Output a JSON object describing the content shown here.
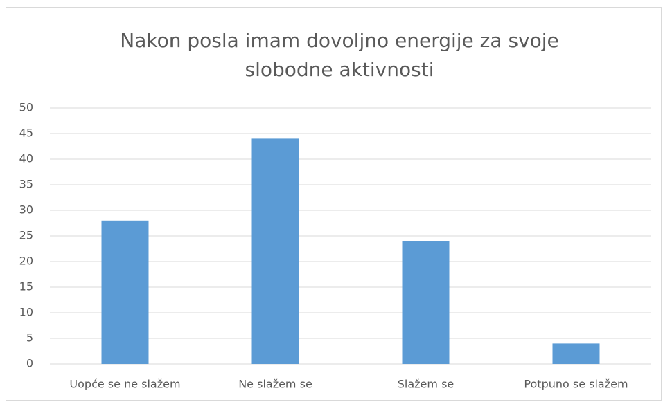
{
  "chart_data": {
    "type": "bar",
    "title": "Nakon posla imam dovoljno energije za svoje slobodne aktivnosti",
    "categories": [
      "Uopće se ne slažem",
      "Ne slažem se",
      "Slažem se",
      "Potpuno se slažem"
    ],
    "values": [
      28,
      44,
      24,
      4
    ],
    "color": "#5b9bd5",
    "ylim": [
      0,
      50
    ],
    "yticks": [
      0,
      5,
      10,
      15,
      20,
      25,
      30,
      35,
      40,
      45,
      50
    ],
    "grid": true
  }
}
